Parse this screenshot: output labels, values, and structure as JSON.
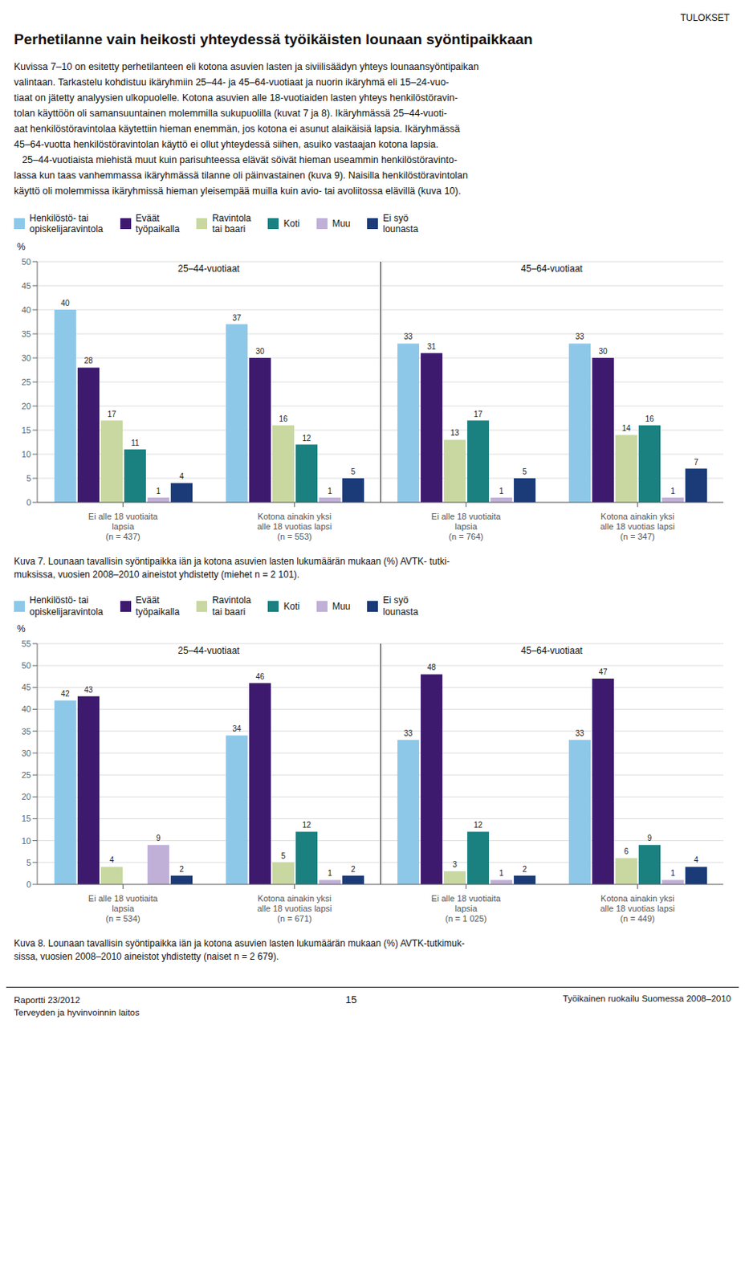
{
  "header": "TULOKSET",
  "title": "Perhetilanne vain heikosti yhteydessä työikäisten lounaan syöntipaikkaan",
  "body_lines": [
    "Kuvissa 7–10 on esitetty perhetilanteen eli kotona asuvien lasten ja siviilisäädyn yhteys lounaansyöntipaikan",
    "valintaan. Tarkastelu kohdistuu ikäryhmiin 25–44- ja 45–64-vuotiaat ja nuorin ikäryhmä eli 15–24-vuo-",
    "tiaat on jätetty analyysien ulkopuolelle. Kotona asuvien alle 18-vuotiaiden lasten yhteys henkilöstöravin-",
    "tolan käyttöön oli samansuuntainen molemmilla sukupuolilla (kuvat 7 ja 8). Ikäryhmässä 25–44-vuoti-",
    "aat henkilöstöravintolaa käytettiin hieman enemmän, jos kotona ei asunut alaikäisiä lapsia. Ikäryhmässä",
    "45–64-vuotta henkilöstöravintolan käyttö ei ollut yhteydessä siihen, asuiko vastaajan kotona lapsia.",
    "   25–44-vuotiaista miehistä muut kuin parisuhteessa elävät söivät hieman useammin henkilöstöravinto-",
    "lassa kun taas vanhemmassa ikäryhmässä tilanne oli päinvastainen (kuva 9). Naisilla henkilöstöravintolan",
    "käyttö oli molemmissa ikäryhmissä hieman yleisempää muilla kuin avio- tai avoliitossa elävillä (kuva 10)."
  ],
  "chart_data": [
    {
      "type": "bar",
      "title": "Kuva 7. Lounaan tavallisin syöntipaikka iän ja kotona asuvien lasten lukumäärän mukaan (%) AVTK- tutki-\nmuksissa, vuosien 2008–2010 aineistot yhdistetty (miehet n = 2 101).",
      "ylabel": "%",
      "annotations": [
        "25–44-vuotiaat",
        "45–64-vuotiaat"
      ],
      "categories": [
        "Ei alle 18 vuotiaita\nlapsia\n(n = 437)",
        "Kotona ainakin yksi\nalle 18 vuotias lapsi\n(n = 553)",
        "Ei alle 18 vuotiaita\nlapsia\n(n = 764)",
        "Kotona ainakin yksi\nalle 18 vuotias lapsi\n(n = 347)"
      ],
      "series": [
        {
          "name": "Henkilöstö- tai\nopiskelijaravintola",
          "color": "#8EC8E8",
          "values": [
            40,
            37,
            33,
            33
          ]
        },
        {
          "name": "Eväät\ntyöpaikalla",
          "color": "#3D1A6E",
          "values": [
            28,
            30,
            31,
            30
          ]
        },
        {
          "name": "Ravintola\ntai baari",
          "color": "#C8D8A0",
          "values": [
            17,
            16,
            13,
            14
          ]
        },
        {
          "name": "Koti",
          "color": "#1A8080",
          "values": [
            11,
            12,
            17,
            16
          ]
        },
        {
          "name": "Muu",
          "color": "#C0B0D8",
          "values": [
            1,
            1,
            1,
            1
          ]
        },
        {
          "name": "Ei syö\nlounasta",
          "color": "#1A3A78",
          "values": [
            4,
            5,
            5,
            7
          ]
        }
      ],
      "ylim": [
        0,
        50
      ],
      "yticks": [
        0,
        5,
        10,
        15,
        20,
        25,
        30,
        35,
        40,
        45,
        50
      ],
      "grid": true,
      "legend": "top",
      "data_labels": true
    },
    {
      "type": "bar",
      "title": "Kuva 8. Lounaan tavallisin syöntipaikka iän ja kotona asuvien lasten lukumäärän mukaan (%) AVTK-tutkimuk-\nsissa, vuosien 2008–2010 aineistot yhdistetty (naiset n = 2 679).",
      "ylabel": "%",
      "annotations": [
        "25–44-vuotiaat",
        "45–64-vuotiaat"
      ],
      "categories": [
        "Ei alle 18 vuotiaita\nlapsia\n(n = 534)",
        "Kotona ainakin yksi\nalle 18 vuotias lapsi\n(n = 671)",
        "Ei alle 18 vuotiaita\nlapsia\n(n = 1 025)",
        "Kotona ainakin yksi\nalle 18 vuotias lapsi\n(n = 449)"
      ],
      "series": [
        {
          "name": "Henkilöstö- tai\nopiskelijaravintola",
          "color": "#8EC8E8",
          "values": [
            42,
            34,
            33,
            33
          ]
        },
        {
          "name": "Eväät\ntyöpaikalla",
          "color": "#3D1A6E",
          "values": [
            43,
            46,
            48,
            47
          ]
        },
        {
          "name": "Ravintola\ntai baari",
          "color": "#C8D8A0",
          "values": [
            4,
            5,
            3,
            6
          ]
        },
        {
          "name": "Koti",
          "color": "#1A8080",
          "values": [
            0,
            12,
            12,
            9
          ]
        },
        {
          "name": "Muu",
          "color": "#C0B0D8",
          "values": [
            9,
            1,
            1,
            1
          ]
        },
        {
          "name": "Ei syö\nlounasta",
          "color": "#1A3A78",
          "values": [
            2,
            2,
            2,
            4
          ]
        }
      ],
      "ylim": [
        0,
        55
      ],
      "yticks": [
        0,
        5,
        10,
        15,
        20,
        25,
        30,
        35,
        40,
        45,
        50,
        55
      ],
      "grid": true,
      "legend": "top",
      "data_labels": true
    }
  ],
  "footer_left": "Raportti 23/2012\nTerveyden ja hyvinvoinnin laitos",
  "footer_page": "15",
  "footer_right": "Työikainen ruokailu Suomessa 2008–2010"
}
